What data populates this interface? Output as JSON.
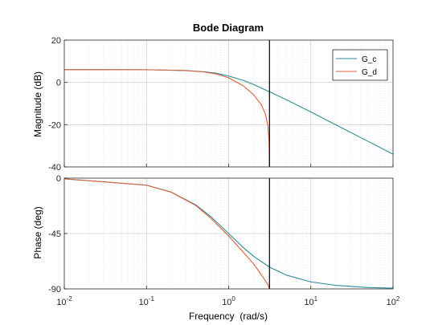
{
  "chart_data": {
    "type": "line",
    "title": "Bode Diagram",
    "xlabel": "Frequency  (rad/s)",
    "xscale": "log",
    "xlim": [
      0.01,
      100
    ],
    "x_ticks": [
      {
        "base": "10",
        "exp": "-2"
      },
      {
        "base": "10",
        "exp": "-1"
      },
      {
        "base": "10",
        "exp": "0"
      },
      {
        "base": "10",
        "exp": "1"
      },
      {
        "base": "10",
        "exp": "2"
      }
    ],
    "nyquist_frequency": 3.14,
    "legend": {
      "position": "top-right",
      "entries": [
        "G_c",
        "G_d"
      ]
    },
    "colors": {
      "G_c": "#2e8b9a",
      "G_d": "#d9603b",
      "nyquist_line": "#000000",
      "grid": "#d0d0d0"
    },
    "grid": true,
    "panels": [
      {
        "id": "magnitude",
        "ylabel": "Magnitude (dB)",
        "ylim": [
          -40,
          20
        ],
        "yticks": [
          "20",
          "0",
          "-20",
          "-40"
        ],
        "series": [
          {
            "name": "G_c",
            "points": [
              [
                0.01,
                6.02
              ],
              [
                0.1,
                6.0
              ],
              [
                0.3,
                5.63
              ],
              [
                0.5,
                5.05
              ],
              [
                0.7,
                4.35
              ],
              [
                1.0,
                3.0
              ],
              [
                1.5,
                0.97
              ],
              [
                2.0,
                -0.97
              ],
              [
                3.14,
                -4.43
              ],
              [
                5.0,
                -8.13
              ],
              [
                10.0,
                -14.0
              ],
              [
                20.0,
                -20.0
              ],
              [
                50.0,
                -27.97
              ],
              [
                100.0,
                -33.98
              ]
            ]
          },
          {
            "name": "G_d",
            "points": [
              [
                0.01,
                6.02
              ],
              [
                0.1,
                6.0
              ],
              [
                0.3,
                5.61
              ],
              [
                0.5,
                4.95
              ],
              [
                0.7,
                4.04
              ],
              [
                1.0,
                2.2
              ],
              [
                1.5,
                -1.6
              ],
              [
                2.0,
                -5.7
              ],
              [
                2.5,
                -10.5
              ],
              [
                2.8,
                -15.0
              ],
              [
                3.0,
                -20.5
              ],
              [
                3.1,
                -27.0
              ],
              [
                3.14,
                -40.0
              ]
            ]
          }
        ]
      },
      {
        "id": "phase",
        "ylabel": "Phase (deg)",
        "ylim": [
          -90,
          0
        ],
        "yticks": [
          "0",
          "-45",
          "-90"
        ],
        "series": [
          {
            "name": "G_c",
            "points": [
              [
                0.01,
                -0.57
              ],
              [
                0.1,
                -5.7
              ],
              [
                0.2,
                -11.3
              ],
              [
                0.4,
                -21.8
              ],
              [
                0.6,
                -31.0
              ],
              [
                1.0,
                -45.0
              ],
              [
                1.5,
                -56.3
              ],
              [
                2.0,
                -63.4
              ],
              [
                3.14,
                -72.3
              ],
              [
                5.0,
                -78.7
              ],
              [
                10.0,
                -84.3
              ],
              [
                20.0,
                -87.1
              ],
              [
                50.0,
                -88.9
              ],
              [
                100.0,
                -89.4
              ]
            ]
          },
          {
            "name": "G_d",
            "points": [
              [
                0.01,
                -0.57
              ],
              [
                0.1,
                -5.7
              ],
              [
                0.2,
                -11.4
              ],
              [
                0.4,
                -22.3
              ],
              [
                0.6,
                -32.3
              ],
              [
                1.0,
                -47.0
              ],
              [
                1.5,
                -60.0
              ],
              [
                2.0,
                -69.5
              ],
              [
                2.5,
                -78.5
              ],
              [
                3.0,
                -86.5
              ],
              [
                3.14,
                -90.0
              ]
            ]
          }
        ]
      }
    ]
  }
}
